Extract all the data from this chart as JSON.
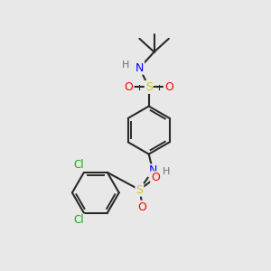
{
  "bg_color": "#e8e8e8",
  "bond_color": "#2a2a2a",
  "atom_colors": {
    "S": "#cccc00",
    "O": "#ff0000",
    "N": "#0000ff",
    "Cl": "#00bb00",
    "H": "#707070",
    "C": "#2a2a2a"
  },
  "fig_size": [
    3.0,
    3.0
  ],
  "dpi": 100
}
